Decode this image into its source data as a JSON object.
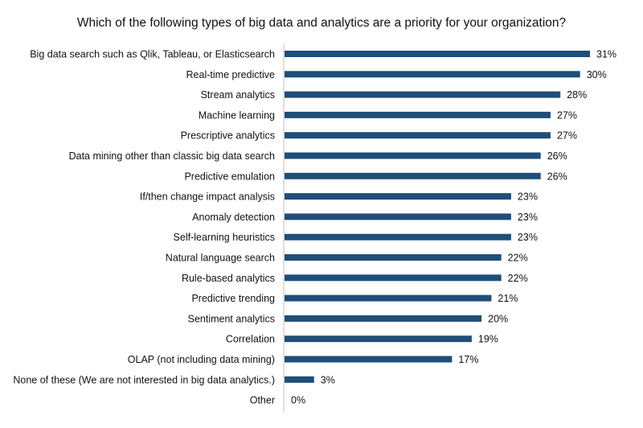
{
  "chart_data": {
    "type": "bar",
    "orientation": "horizontal",
    "title": "Which of the following types of big data and analytics are a priority for your organization?",
    "categories": [
      "Big data search such as Qlik, Tableau, or Elasticsearch",
      "Real-time predictive",
      "Stream analytics",
      "Machine learning",
      "Prescriptive analytics",
      "Data mining other than classic big data search",
      "Predictive emulation",
      "If/then change impact analysis",
      "Anomaly detection",
      "Self-learning heuristics",
      "Natural language search",
      "Rule-based analytics",
      "Predictive trending",
      "Sentiment analytics",
      "Correlation",
      "OLAP (not including data mining)",
      "None of these (We are not interested in big data analytics.)",
      "Other"
    ],
    "values": [
      31,
      30,
      28,
      27,
      27,
      26,
      26,
      23,
      23,
      23,
      22,
      22,
      21,
      20,
      19,
      17,
      3,
      0
    ],
    "labels": [
      "31%",
      "30%",
      "28%",
      "27%",
      "27%",
      "26%",
      "26%",
      "23%",
      "23%",
      "23%",
      "22%",
      "22%",
      "21%",
      "20%",
      "19%",
      "17%",
      "3%",
      "0%"
    ],
    "xlim": [
      0,
      31
    ],
    "bar_color": "#1f4e79",
    "grid": false,
    "legend": "none"
  }
}
